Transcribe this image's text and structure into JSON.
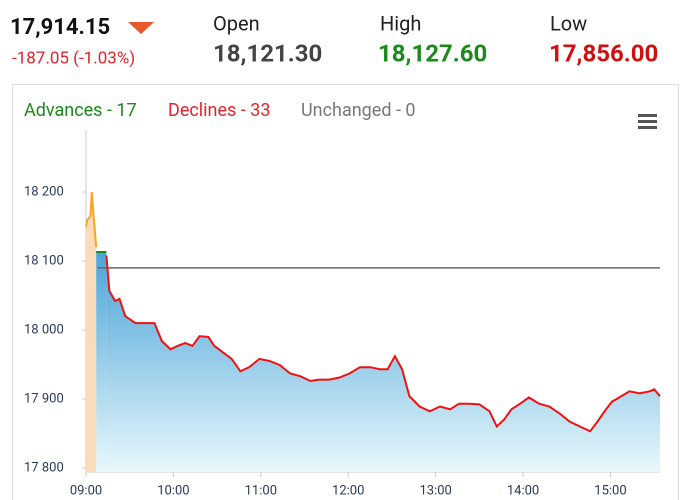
{
  "header": {
    "price": "17,914.15",
    "change": "-187.05 (-1.03%)",
    "open_label": "Open",
    "open": "18,121.30",
    "high_label": "High",
    "high": "18,127.60",
    "low_label": "Low",
    "low": "17,856.00"
  },
  "breadth": [
    "Advances - 17",
    "Declines - 33",
    "Unchanged - 0"
  ],
  "chart_data": {
    "type": "line",
    "xlim": [
      "09:00",
      "15:34"
    ],
    "ylim": [
      17794,
      18290
    ],
    "xticks": [
      "09:00",
      "10:00",
      "11:00",
      "12:00",
      "13:00",
      "14:00",
      "15:00"
    ],
    "yticks": [
      {
        "value": 17800,
        "label": "17 800"
      },
      {
        "value": 17900,
        "label": "17 900"
      },
      {
        "value": 18000,
        "label": "18 000"
      },
      {
        "value": 18100,
        "label": "18 100"
      },
      {
        "value": 18200,
        "label": "18 200"
      }
    ],
    "reference_line": 18090,
    "reference_color": "#666666",
    "series": [
      {
        "color": "#f5a623",
        "fill": "#fbdcb8",
        "x": [
          "09:00",
          "09:01",
          "09:03",
          "09:04",
          "09:05",
          "09:07"
        ],
        "values": [
          18150,
          18160,
          18165,
          18200,
          18170,
          18120
        ]
      },
      {
        "color": "#1a8a1a",
        "fill": "#4aa3d8",
        "x": [
          "09:07",
          "09:14"
        ],
        "values": [
          18113,
          18113
        ]
      },
      {
        "color": "#ee1111",
        "fill": "#4aa3d8",
        "x": [
          "09:14",
          "09:16",
          "09:20",
          "09:23",
          "09:27",
          "09:34",
          "09:40",
          "09:47",
          "09:52",
          "09:58",
          "10:03",
          "10:08",
          "10:13",
          "10:18",
          "10:24",
          "10:28",
          "10:35",
          "10:40",
          "10:46",
          "10:52",
          "10:59",
          "11:06",
          "11:13",
          "11:20",
          "11:27",
          "11:34",
          "11:40",
          "11:47",
          "11:54",
          "12:01",
          "12:08",
          "12:15",
          "12:22",
          "12:27",
          "12:32",
          "12:37",
          "12:42",
          "12:49",
          "12:56",
          "13:03",
          "13:10",
          "13:16",
          "13:23",
          "13:30",
          "13:37",
          "13:42",
          "13:47",
          "13:52",
          "13:58",
          "14:04",
          "14:11",
          "14:18",
          "14:25",
          "14:32",
          "14:39",
          "14:46",
          "14:51",
          "14:56",
          "15:01",
          "15:06",
          "15:13",
          "15:20",
          "15:27",
          "15:30",
          "15:34"
        ],
        "values": [
          18108,
          18057,
          18042,
          18045,
          18020,
          18010,
          18010,
          18010,
          17984,
          17972,
          17977,
          17981,
          17977,
          17991,
          17990,
          17977,
          17966,
          17958,
          17940,
          17946,
          17958,
          17955,
          17949,
          17937,
          17933,
          17926,
          17928,
          17928,
          17931,
          17937,
          17946,
          17946,
          17943,
          17943,
          17962,
          17943,
          17904,
          17889,
          17882,
          17889,
          17885,
          17893,
          17893,
          17892,
          17882,
          17860,
          17870,
          17885,
          17893,
          17902,
          17893,
          17889,
          17879,
          17867,
          17860,
          17853,
          17867,
          17882,
          17896,
          17902,
          17911,
          17908,
          17911,
          17914,
          17904
        ]
      }
    ]
  }
}
